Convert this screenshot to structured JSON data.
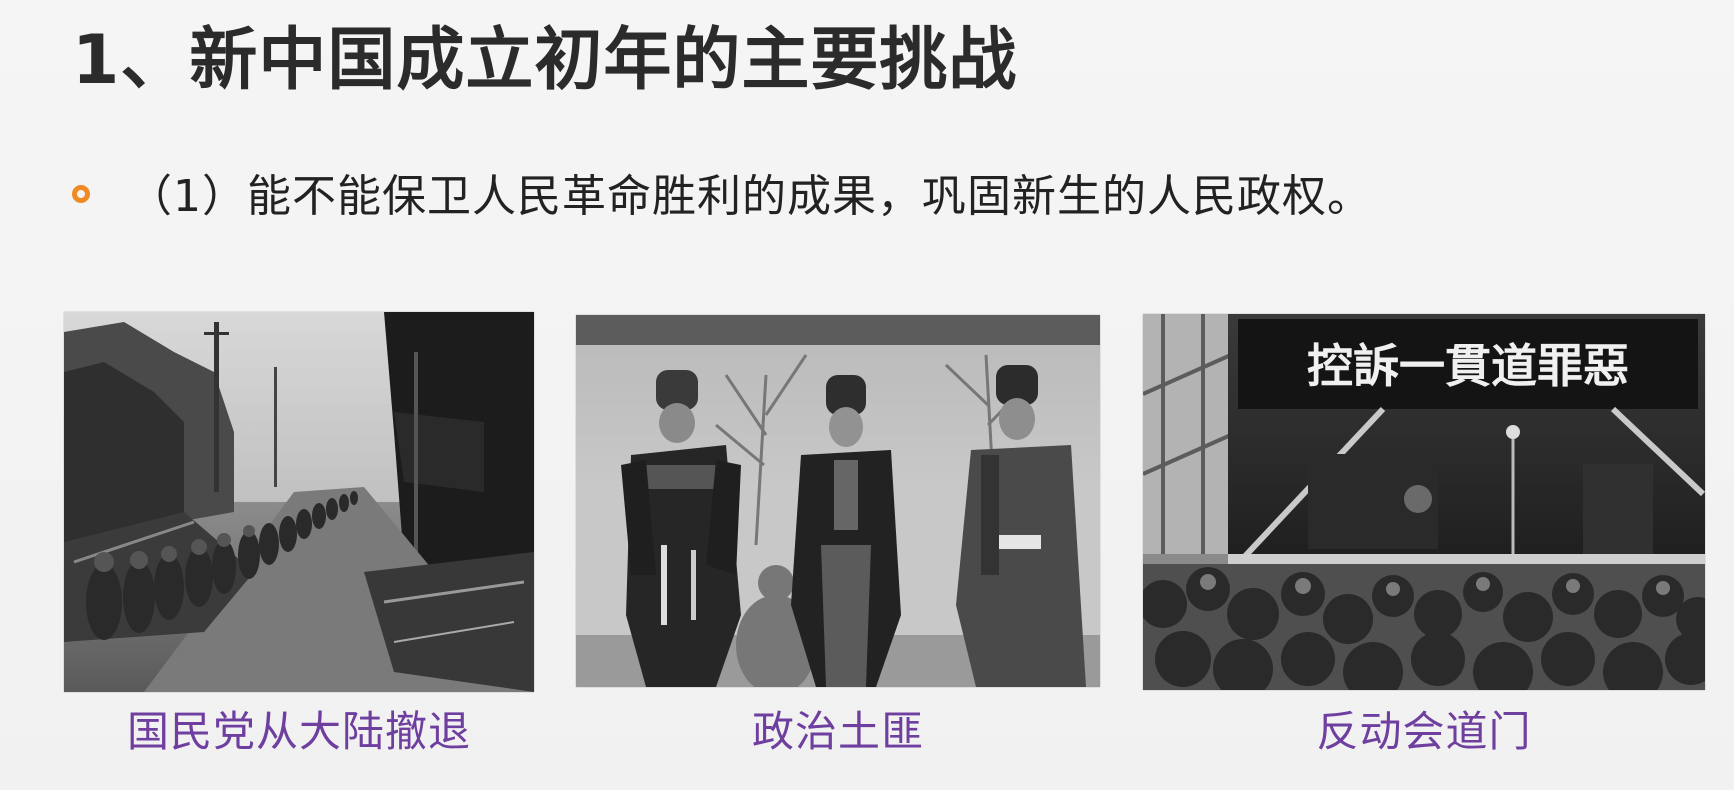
{
  "slide": {
    "title": "1、新中国成立初年的主要挑战",
    "bullet": "（1）能不能保卫人民革命胜利的成果，巩固新生的人民政权。",
    "bullet_color": "#f08a24",
    "caption_color": "#6f3fa0"
  },
  "photos": [
    {
      "caption": "国民党从大陆撤退",
      "icon": "retreat-street-photo"
    },
    {
      "caption": "政治土匪",
      "icon": "bandits-portrait-photo"
    },
    {
      "caption": "反动会道门",
      "icon": "rally-stage-photo",
      "banner_text": "控訴一貫道罪惡"
    }
  ]
}
